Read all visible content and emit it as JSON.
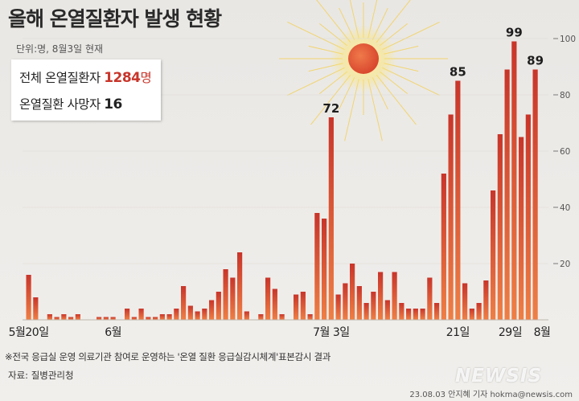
{
  "header": {
    "title": "올해 온열질환자 발생 현황",
    "subtitle": "단위:명, 8월3일 현재"
  },
  "info": {
    "total_label": "전체 온열질환자",
    "total_value": "1284",
    "total_unit": "명",
    "deaths_label": "온열질환 사망자",
    "deaths_value": "16"
  },
  "footer": {
    "note": "※전국 응급실 운영 의료기관 참여로 운영하는 '온열 질환 응급실감시체계'표본감시 결과",
    "source": "자료: 질병관리청",
    "credit": "23.08.03 안지혜 기자 hokma@newsis.com",
    "watermark": "NEWSIS"
  },
  "colors": {
    "bar_top": "#c8352a",
    "bar_bottom": "#ee7f45",
    "sun": "#e2583a"
  },
  "chart_data": {
    "type": "bar",
    "values": [
      16,
      8,
      0,
      2,
      1,
      2,
      1,
      2,
      0,
      0,
      1,
      1,
      1,
      0,
      4,
      1,
      4,
      1,
      1,
      2,
      2,
      4,
      12,
      5,
      3,
      4,
      7,
      10,
      18,
      15,
      24,
      3,
      0,
      2,
      15,
      11,
      2,
      0,
      9,
      10,
      2,
      38,
      36,
      72,
      9,
      13,
      20,
      12,
      6,
      10,
      17,
      7,
      17,
      6,
      4,
      4,
      4,
      15,
      6,
      52,
      73,
      85,
      13,
      4,
      6,
      14,
      46,
      66,
      89,
      99,
      65,
      73,
      89
    ],
    "x_tick_labels": [
      "5월20일",
      "6월",
      "7월 3일",
      "21일",
      "29일",
      "8월"
    ],
    "peak_labels": [
      "72",
      "85",
      "99",
      "89"
    ],
    "y_tick_labels": [
      "20",
      "40",
      "60",
      "80",
      "100"
    ],
    "ylim": [
      0,
      100
    ]
  }
}
